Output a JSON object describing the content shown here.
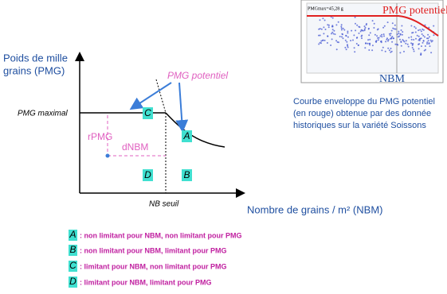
{
  "diagram": {
    "y_axis_label": [
      "Poids de mille",
      "grains (PMG)"
    ],
    "pmg_maximal": "PMG maximal",
    "pmg_potentiel": "PMG potentiel",
    "zones": {
      "C": "C",
      "A": "A",
      "D": "D",
      "B": "B"
    },
    "rpmg": "rPMG",
    "dnbm": "dNBM",
    "nb_seuil": "NB seuil",
    "x_axis_label": "Nombre de grains / m² (NBM)"
  },
  "inset": {
    "pmgmax": "PMGmax=45,28 g",
    "curve_label": "PMG potentiel",
    "x_label": "NBM",
    "caption": [
      "Courbe enveloppe du PMG potentiel",
      "(en rouge) obtenue par des donnée",
      "historiques sur la variété Soissons"
    ]
  },
  "legend": [
    {
      "key": "A",
      "text": ": non limitant pour NBM, non limitant pour PMG"
    },
    {
      "key": "B",
      "text": ": non limitant pour NBM, limitant pour PMG"
    },
    {
      "key": "C",
      "text": ": limitant pour NBM, non limitant pour PMG"
    },
    {
      "key": "D",
      "text": ": limitant pour NBM, limitant pour PMG"
    }
  ]
}
